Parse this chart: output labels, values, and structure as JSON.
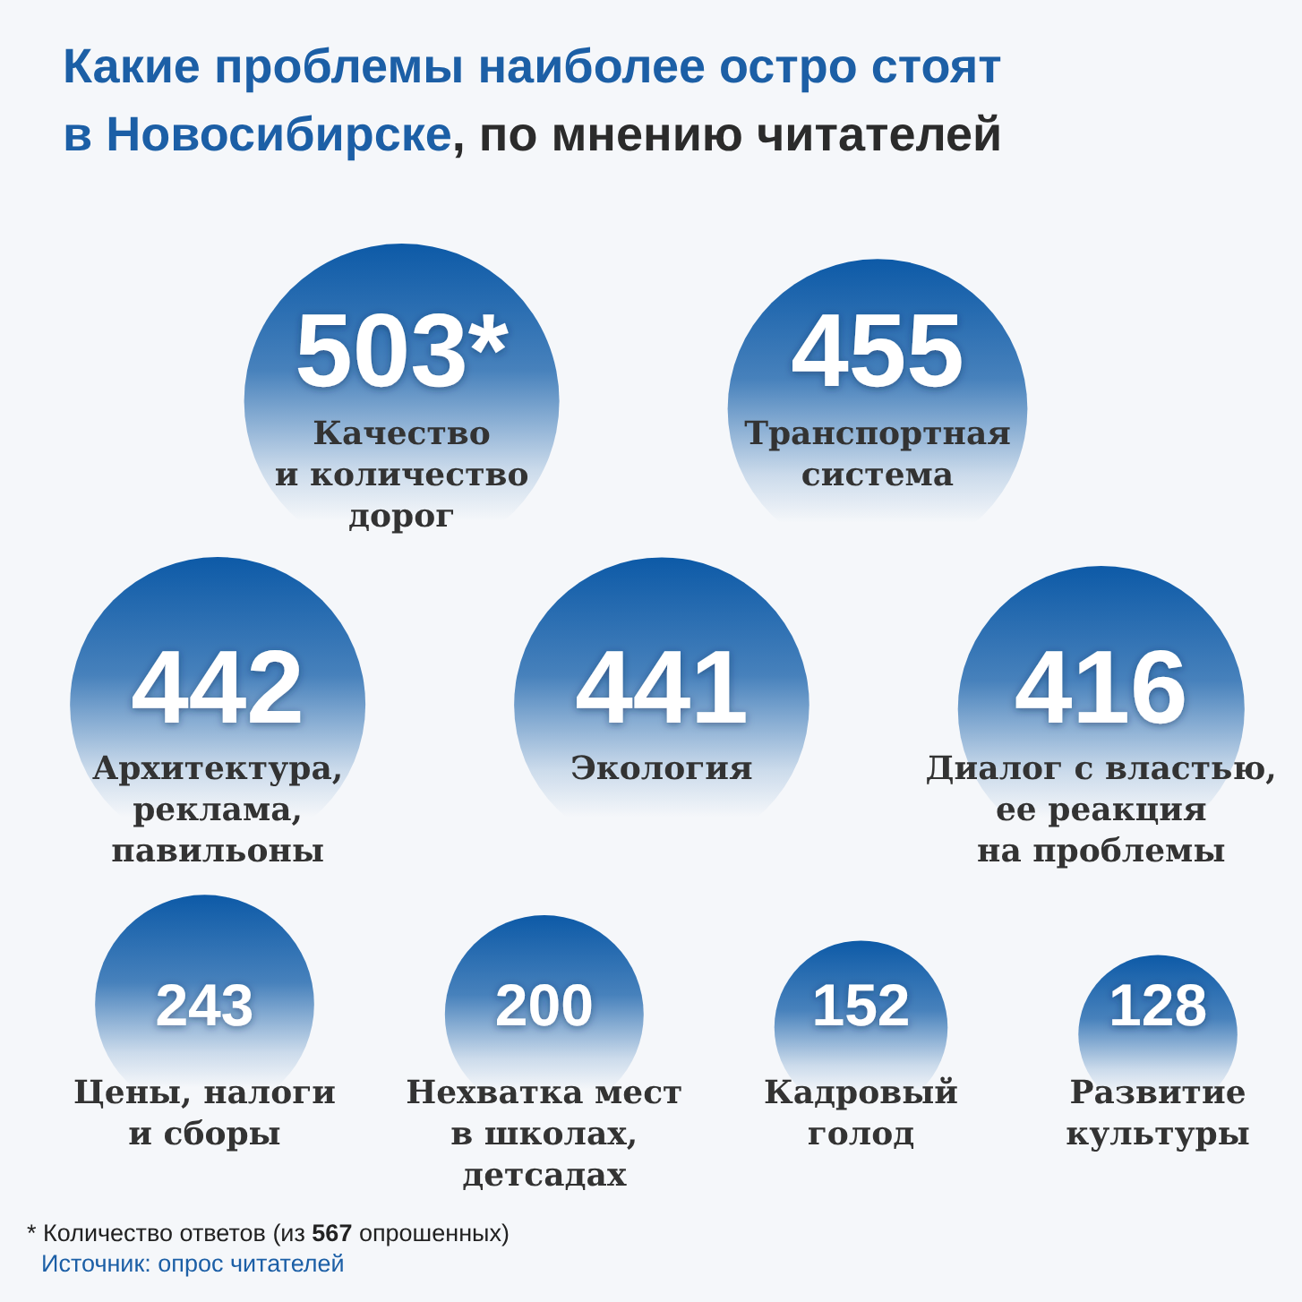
{
  "chart_data": {
    "type": "other",
    "title": "Какие проблемы наиболее остро стоят\nв Новосибирске, по мнению читателей",
    "categories": [
      "Качество\nи количество\nдорог",
      "Транспортная\nсистема",
      "Архитектура,\nреклама,\nпавильоны",
      "Экология",
      "Диалог с властью,\nее реакция\nна проблемы",
      "Цены, налоги\nи сборы",
      "Нехватка мест\nв школах,\nдетсадах",
      "Кадровый\nголод",
      "Развитие\nкультуры"
    ],
    "values": [
      503,
      455,
      442,
      441,
      416,
      243,
      200,
      152,
      128
    ],
    "value_labels": [
      "503*",
      "455",
      "442",
      "441",
      "416",
      "243",
      "200",
      "152",
      "128"
    ],
    "color": "#0d5aa7",
    "annotations": [
      "* Количество ответов (из 567 опрошенных)",
      "Источник: опрос читателей"
    ]
  }
}
